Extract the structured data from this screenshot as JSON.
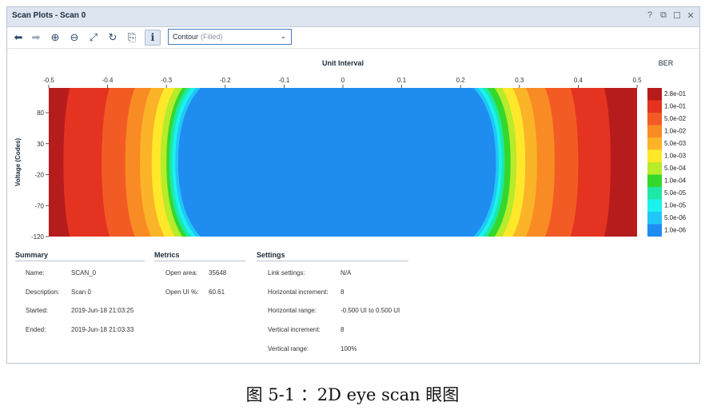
{
  "window": {
    "title": "Scan Plots - Scan 0",
    "controls": [
      "?",
      "⧉",
      "☐",
      "✕"
    ]
  },
  "toolbar": {
    "buttons": [
      {
        "name": "back-arrow-icon",
        "glyph": "⬅",
        "enabled": true
      },
      {
        "name": "forward-arrow-icon",
        "glyph": "➡",
        "enabled": false
      },
      {
        "name": "zoom-in-icon",
        "glyph": "⊕",
        "enabled": true
      },
      {
        "name": "zoom-out-icon",
        "glyph": "⊖",
        "enabled": true
      },
      {
        "name": "fit-icon",
        "glyph": "⤢",
        "enabled": true
      },
      {
        "name": "refresh-icon",
        "glyph": "↻",
        "enabled": true
      },
      {
        "name": "export-icon",
        "glyph": "⎘",
        "enabled": true
      },
      {
        "name": "info-icon",
        "glyph": "ℹ",
        "enabled": true
      }
    ],
    "plot_type": {
      "value": "Contour",
      "hint": "(Filled)"
    }
  },
  "chart_data": {
    "type": "heatmap",
    "title": "Unit Interval",
    "xlabel": "Unit Interval",
    "ylabel": "Voltage (Codes)",
    "x_ticks": [
      "-0.5",
      "-0.4",
      "-0.3",
      "-0.2",
      "-0.1",
      "0",
      "0.1",
      "0.2",
      "0.3",
      "0.4",
      "0.5"
    ],
    "x_tick_values": [
      -0.5,
      -0.4,
      -0.3,
      -0.2,
      -0.1,
      0,
      0.1,
      0.2,
      0.3,
      0.4,
      0.5
    ],
    "y_ticks": [
      "80",
      "30",
      "-20",
      "-70",
      "-120"
    ],
    "y_tick_values": [
      80,
      30,
      -20,
      -70,
      -120
    ],
    "xlim": [
      -0.5,
      0.5
    ],
    "ylim": [
      -120,
      120
    ],
    "legend_title": "BER",
    "legend": [
      {
        "label": "2.8e-01",
        "color": "#b71c1c"
      },
      {
        "label": "1.0e-01",
        "color": "#e53321"
      },
      {
        "label": "5.0e-02",
        "color": "#f35b24"
      },
      {
        "label": "1.0e-02",
        "color": "#f98b24"
      },
      {
        "label": "5.0e-03",
        "color": "#fbb328"
      },
      {
        "label": "1.0e-03",
        "color": "#ffe82a"
      },
      {
        "label": "5.0e-04",
        "color": "#b8eb2a"
      },
      {
        "label": "1.0e-04",
        "color": "#34d82c"
      },
      {
        "label": "5.0e-05",
        "color": "#1ee8a8"
      },
      {
        "label": "1.0e-05",
        "color": "#1bf2ef"
      },
      {
        "label": "5.0e-06",
        "color": "#20c6f7"
      },
      {
        "label": "1.0e-06",
        "color": "#1f8cf0"
      }
    ],
    "contour_bands_ui": [
      {
        "level": 0,
        "left_edge": -0.5,
        "right_edge": 0.5
      },
      {
        "level": 1,
        "left_edge": -0.475,
        "right_edge": 0.455
      },
      {
        "level": 2,
        "left_edge": -0.41,
        "right_edge": 0.4
      },
      {
        "level": 3,
        "left_edge": -0.37,
        "right_edge": 0.36
      },
      {
        "level": 4,
        "left_edge": -0.345,
        "right_edge": 0.33
      },
      {
        "level": 5,
        "left_edge": -0.325,
        "right_edge": 0.31
      },
      {
        "level": 6,
        "left_edge": -0.31,
        "right_edge": 0.295
      },
      {
        "level": 7,
        "left_edge": -0.3,
        "right_edge": 0.285
      },
      {
        "level": 8,
        "left_edge": -0.295,
        "right_edge": 0.275
      },
      {
        "level": 9,
        "left_edge": -0.29,
        "right_edge": 0.27
      },
      {
        "level": 10,
        "left_edge": -0.285,
        "right_edge": 0.265
      },
      {
        "level": 11,
        "left_edge": -0.28,
        "right_edge": 0.26
      }
    ]
  },
  "summary": {
    "title": "Summary",
    "rows": [
      {
        "label": "Name:",
        "value": "SCAN_0"
      },
      {
        "label": "Description:",
        "value": "Scan 0"
      },
      {
        "label": "Started:",
        "value": "2019-Jun-18 21:03:25"
      },
      {
        "label": "Ended:",
        "value": "2019-Jun-18 21:03:33"
      }
    ]
  },
  "metrics": {
    "title": "Metrics",
    "rows": [
      {
        "label": "Open area:",
        "value": "35648"
      },
      {
        "label": "Open UI %:",
        "value": "60.61"
      }
    ]
  },
  "settings": {
    "title": "Settings",
    "rows": [
      {
        "label": "Link settings:",
        "value": "N/A"
      },
      {
        "label": "Horizontal increment:",
        "value": "8"
      },
      {
        "label": "Horizontal range:",
        "value": "-0.500 UI to 0.500 UI"
      },
      {
        "label": "Vertical increment:",
        "value": "8"
      },
      {
        "label": "Vertical range:",
        "value": "100%"
      }
    ]
  },
  "caption": "图 5-1 ：2D eye scan 眼图"
}
